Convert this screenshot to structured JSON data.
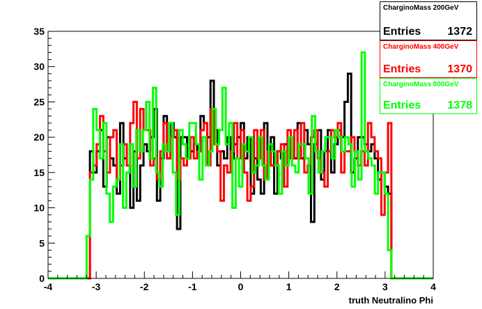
{
  "chart_data": {
    "type": "line",
    "xlabel": "truth Neutralino Phi",
    "ylabel": "",
    "xlim": [
      -4,
      4
    ],
    "ylim": [
      0,
      35
    ],
    "x_ticks": [
      "-4",
      "-3",
      "-2",
      "-1",
      "0",
      "1",
      "2",
      "3",
      "4"
    ],
    "y_ticks": [
      "0",
      "5",
      "10",
      "15",
      "20",
      "25",
      "30",
      "35"
    ],
    "bin_range": [
      -3.2,
      3.2
    ],
    "series": [
      {
        "name": "CharginoMass 200GeV",
        "color": "#000000",
        "entries_label": "Entries",
        "entries_value": "1372",
        "values": [
          0,
          18,
          15,
          18,
          21,
          13,
          20,
          17,
          16,
          12,
          22,
          17,
          16,
          10,
          18,
          11,
          16,
          19,
          18,
          20,
          24,
          11,
          17,
          23,
          17,
          22,
          20,
          7,
          20,
          20,
          17,
          18,
          19,
          18,
          23,
          22,
          20,
          28,
          21,
          16,
          18,
          17,
          20,
          17,
          19,
          20,
          22,
          17,
          20,
          12,
          17,
          14,
          12,
          22,
          17,
          20,
          12,
          18,
          17,
          19,
          18,
          17,
          17,
          22,
          17,
          21,
          19,
          8,
          19,
          21,
          14,
          18,
          21,
          15,
          19,
          21,
          20,
          25,
          29,
          15,
          17,
          20,
          20,
          19,
          18,
          19,
          17,
          14,
          15,
          13,
          12,
          0
        ]
      },
      {
        "name": "CharginoMass 400GeV",
        "color": "#ff0000",
        "entries_label": "Entries",
        "entries_value": "1370",
        "values": [
          0,
          15,
          16,
          19,
          23,
          18,
          15,
          20,
          21,
          14,
          16,
          19,
          16,
          22,
          25,
          17,
          24,
          21,
          21,
          16,
          17,
          14,
          18,
          22,
          17,
          20,
          21,
          14,
          17,
          16,
          17,
          20,
          17,
          18,
          21,
          22,
          16,
          24,
          19,
          18,
          11,
          16,
          15,
          18,
          22,
          17,
          21,
          15,
          11,
          13,
          21,
          17,
          21,
          14,
          18,
          16,
          16,
          18,
          19,
          13,
          21,
          17,
          21,
          17,
          22,
          15,
          16,
          20,
          21,
          17,
          15,
          13,
          18,
          21,
          20,
          22,
          15,
          18,
          18,
          20,
          18,
          16,
          18,
          16,
          22,
          20,
          18,
          17,
          9,
          15,
          22,
          0
        ]
      },
      {
        "name": "CharginoMass 800GeV",
        "color": "#00ff00",
        "entries_label": "Entries",
        "entries_value": "1378",
        "values": [
          6,
          14,
          24,
          21,
          17,
          22,
          12,
          8,
          13,
          14,
          19,
          10,
          15,
          19,
          13,
          21,
          18,
          21,
          25,
          17,
          27,
          15,
          13,
          19,
          18,
          22,
          15,
          9,
          21,
          19,
          17,
          22,
          22,
          19,
          14,
          20,
          16,
          18,
          24,
          19,
          21,
          27,
          19,
          22,
          10,
          17,
          13,
          19,
          18,
          20,
          15,
          16,
          20,
          16,
          14,
          19,
          18,
          16,
          12,
          18,
          16,
          20,
          16,
          15,
          19,
          19,
          17,
          12,
          23,
          18,
          15,
          18,
          20,
          20,
          17,
          21,
          20,
          18,
          20,
          19,
          13,
          18,
          14,
          32,
          18,
          17,
          16,
          12,
          15,
          15,
          12,
          4,
          0
        ]
      }
    ]
  },
  "legend": [
    {
      "name": "CharginoMass 200GeV",
      "entries_label": "Entries",
      "entries_value": "1372",
      "color": "#000000"
    },
    {
      "name": "CharginoMass 400GeV",
      "entries_label": "Entries",
      "entries_value": "1370",
      "color": "#ff0000"
    },
    {
      "name": "CharginoMass 800GeV",
      "entries_label": "Entries",
      "entries_value": "1378",
      "color": "#00ff00"
    }
  ]
}
